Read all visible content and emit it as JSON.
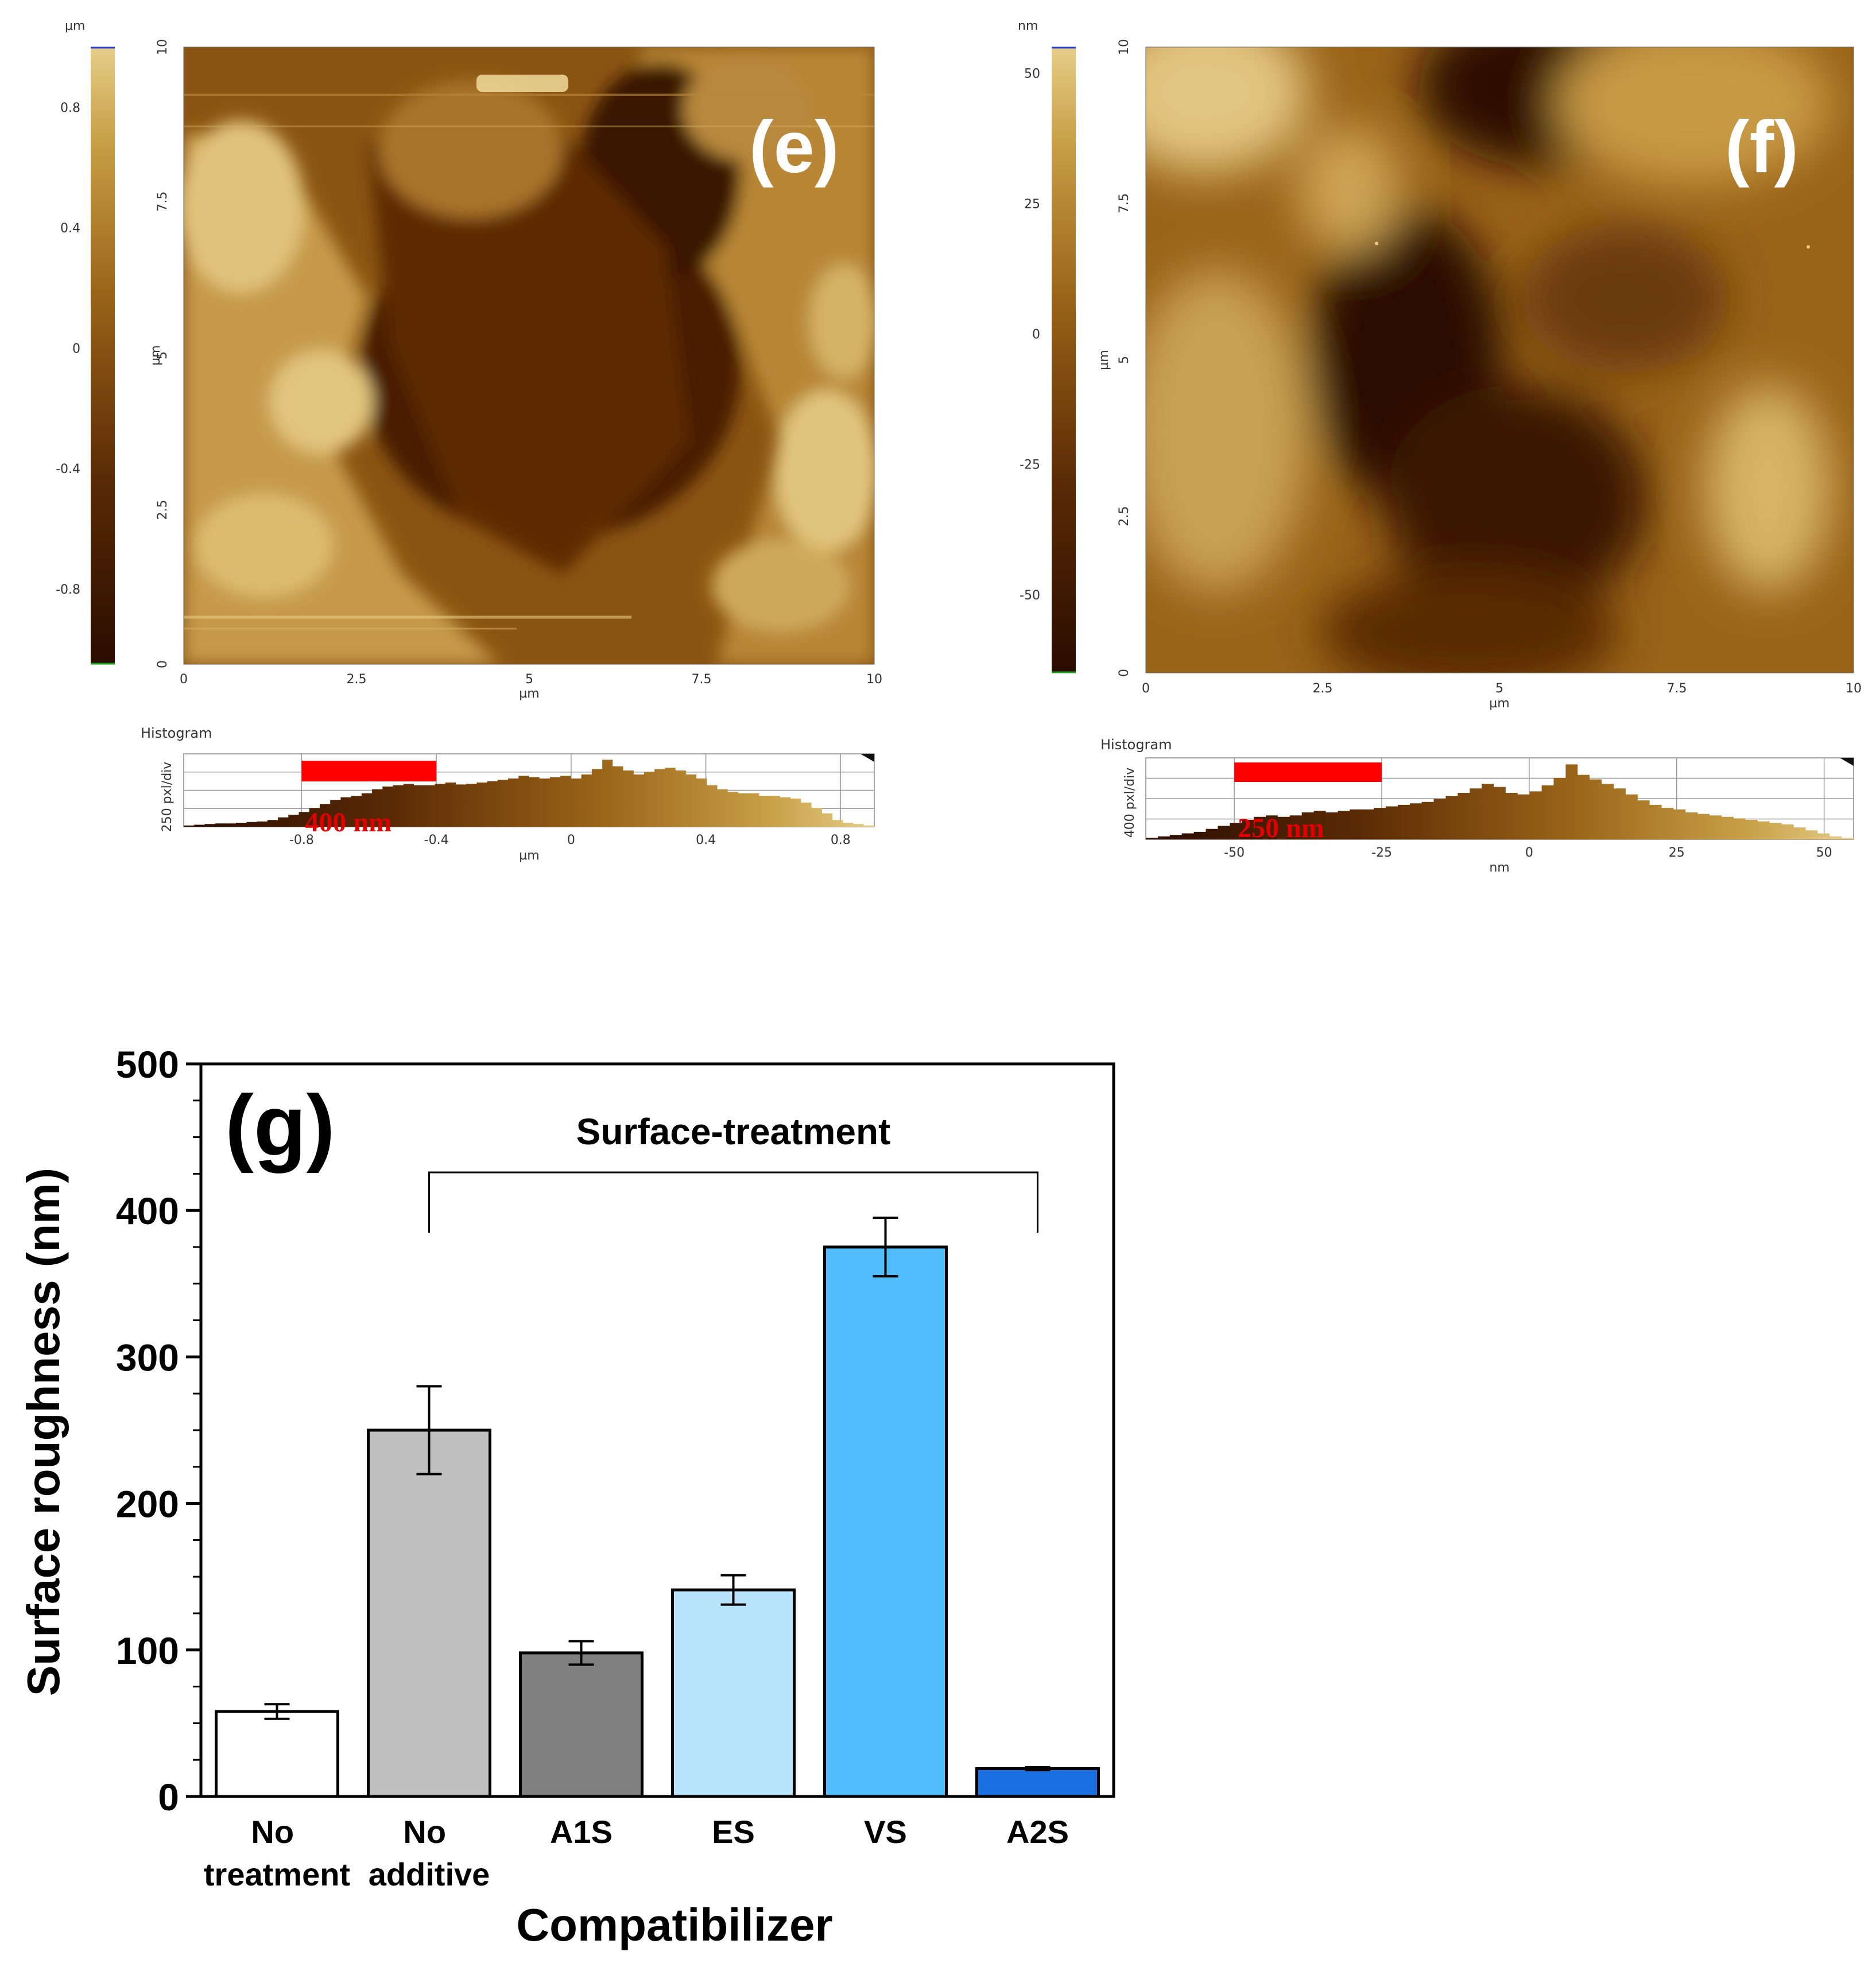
{
  "afm_e": {
    "panel_label": "(e)",
    "colorbar": {
      "unit": "µm",
      "ticks": [
        "0.8",
        "0.4",
        "0",
        "-0.4",
        "-0.8"
      ],
      "values": [
        0.8,
        0.4,
        0,
        -0.4,
        -0.8
      ],
      "range": [
        -1.05,
        1.0
      ]
    },
    "y_axis": {
      "label": "µm",
      "ticks": [
        "10",
        "7.5",
        "5",
        "2.5",
        "0"
      ]
    },
    "x_axis": {
      "label": "µm",
      "ticks": [
        "0",
        "2.5",
        "5",
        "7.5",
        "10"
      ]
    },
    "histogram": {
      "title": "Histogram",
      "ylabel": "250 pxl/div",
      "xlabel": "µm",
      "x_ticks": [
        "-0.8",
        "-0.4",
        "0",
        "0.4",
        "0.8"
      ],
      "x_values": [
        -0.8,
        -0.4,
        0,
        0.4,
        0.8
      ],
      "x_range": [
        -1.15,
        0.9
      ],
      "scale_bar_label": "400 nm",
      "scale_bar_from": -0.8,
      "scale_bar_to": -0.4,
      "profile": [
        0.02,
        0.03,
        0.04,
        0.05,
        0.05,
        0.06,
        0.07,
        0.08,
        0.1,
        0.14,
        0.18,
        0.22,
        0.28,
        0.34,
        0.4,
        0.44,
        0.46,
        0.5,
        0.56,
        0.6,
        0.62,
        0.64,
        0.62,
        0.62,
        0.64,
        0.66,
        0.63,
        0.64,
        0.66,
        0.68,
        0.7,
        0.72,
        0.76,
        0.74,
        0.72,
        0.74,
        0.76,
        0.72,
        0.78,
        0.86,
        1.0,
        0.9,
        0.84,
        0.78,
        0.82,
        0.86,
        0.88,
        0.84,
        0.78,
        0.72,
        0.62,
        0.56,
        0.52,
        0.5,
        0.5,
        0.46,
        0.46,
        0.44,
        0.42,
        0.36,
        0.28,
        0.2,
        0.1,
        0.06,
        0.04,
        0.02
      ]
    }
  },
  "afm_f": {
    "panel_label": "(f)",
    "colorbar": {
      "unit": "nm",
      "ticks": [
        "50",
        "25",
        "0",
        "-25",
        "-50"
      ],
      "values": [
        50,
        25,
        0,
        -25,
        -50
      ],
      "range": [
        -65,
        55
      ]
    },
    "y_axis": {
      "label": "µm",
      "ticks": [
        "10",
        "7.5",
        "5",
        "2.5",
        "0"
      ]
    },
    "x_axis": {
      "label": "µm",
      "ticks": [
        "0",
        "2.5",
        "5",
        "7.5",
        "10"
      ]
    },
    "histogram": {
      "title": "Histogram",
      "ylabel": "400 pxl/div",
      "xlabel": "nm",
      "x_ticks": [
        "-50",
        "-25",
        "0",
        "25",
        "50"
      ],
      "x_values": [
        -50,
        -25,
        0,
        25,
        50
      ],
      "x_range": [
        -65,
        55
      ],
      "scale_bar_label": "250 nm",
      "scale_bar_from": -50,
      "scale_bar_to": -25,
      "profile": [
        0.02,
        0.04,
        0.06,
        0.08,
        0.1,
        0.14,
        0.18,
        0.22,
        0.26,
        0.3,
        0.32,
        0.3,
        0.32,
        0.36,
        0.38,
        0.36,
        0.38,
        0.4,
        0.4,
        0.42,
        0.44,
        0.46,
        0.48,
        0.5,
        0.54,
        0.58,
        0.62,
        0.68,
        0.74,
        0.7,
        0.62,
        0.6,
        0.64,
        0.72,
        0.82,
        1.0,
        0.86,
        0.8,
        0.74,
        0.68,
        0.6,
        0.52,
        0.46,
        0.42,
        0.4,
        0.36,
        0.34,
        0.32,
        0.3,
        0.28,
        0.26,
        0.24,
        0.22,
        0.2,
        0.16,
        0.12,
        0.08,
        0.04,
        0.02
      ]
    }
  },
  "chart_data": {
    "type": "bar",
    "panel_label": "(g)",
    "categories": [
      [
        "No",
        "treatment"
      ],
      [
        "No",
        "additive"
      ],
      [
        "A1S"
      ],
      [
        "ES"
      ],
      [
        "VS"
      ],
      [
        "A2S"
      ]
    ],
    "values": [
      58,
      250,
      98,
      141,
      375,
      19
    ],
    "errors": [
      5,
      30,
      8,
      10,
      20,
      1
    ],
    "colors": [
      "#ffffff",
      "#c0c0c0",
      "#808080",
      "#b8e4fe",
      "#52bdfd",
      "#1a6fe0"
    ],
    "xlabel": "Compatibilizer",
    "ylabel": "Surface roughness (nm)",
    "ylim": [
      0,
      500
    ],
    "yticks": [
      "0",
      "100",
      "200",
      "300",
      "400",
      "500"
    ],
    "ytick_values": [
      0,
      100,
      200,
      300,
      400,
      500
    ],
    "bracket_label": "Surface-treatment",
    "bracket_span": [
      1,
      5
    ]
  }
}
